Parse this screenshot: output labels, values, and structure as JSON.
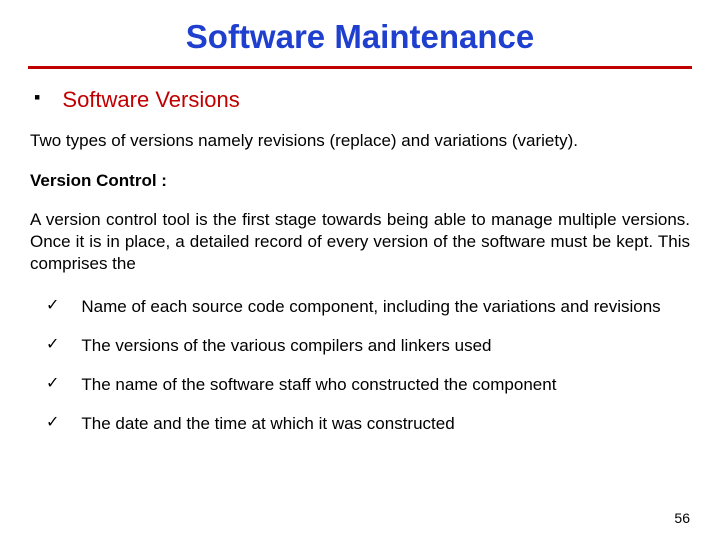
{
  "colors": {
    "title": "#1f3fcf",
    "underline": "#c00000",
    "section_heading": "#c00000",
    "body_text": "#000000",
    "background": "#ffffff"
  },
  "fontsizes": {
    "title": 33,
    "section_heading": 22,
    "body": 17,
    "page_num": 14
  },
  "title": "Software Maintenance",
  "section_heading": "Software Versions",
  "intro": "Two types of versions namely revisions (replace) and variations (variety).",
  "subheading": "Version Control :",
  "paragraph": "A version control tool is the first stage towards being able to manage multiple versions. Once it is in place, a detailed record of every version of the software must be kept. This comprises the",
  "checklist": [
    "Name of each source code component, including the variations and revisions",
    "The versions of the various compilers and linkers used",
    "The name of the software staff who constructed the component",
    "The date and the time at which it was constructed"
  ],
  "page_number": "56"
}
